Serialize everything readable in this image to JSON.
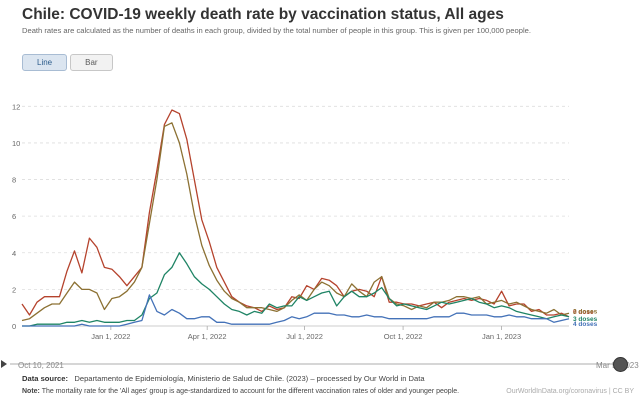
{
  "header": {
    "title": "Chile: COVID-19 weekly death rate by vaccination status, All ages",
    "subtitle": "Death rates are calculated as the number of deaths in each group, divided by the total number of people in this group. This is given per 100,000 people."
  },
  "tabs": [
    {
      "label": "Line",
      "active": true
    },
    {
      "label": "Bar",
      "active": false
    }
  ],
  "timeline": {
    "start_label": "Oct 10, 2021",
    "end_label": "Mar 5, 2023"
  },
  "footer": {
    "source_label": "Data source:",
    "source_text": "Departamento de Epidemiología, Ministerio de Salud de Chile. (2023) – processed by Our World in Data",
    "note_label": "Note:",
    "note_text": "The mortality rate for the 'All ages' group is age-standardized to account for the different vaccination rates of older and younger people.",
    "link": "OurWorldInData.org/coronavirus | CC BY"
  },
  "chart_data": {
    "type": "line",
    "ylim": [
      0,
      13
    ],
    "y_ticks": [
      0,
      2,
      4,
      6,
      8,
      10,
      12
    ],
    "x_range": [
      "2021-10-10",
      "2023-03-05"
    ],
    "x_ticks": [
      {
        "label": "Jan 1, 2022",
        "date": "2022-01-01"
      },
      {
        "label": "Apr 1, 2022",
        "date": "2022-04-01"
      },
      {
        "label": "Jul 1, 2022",
        "date": "2022-07-01"
      },
      {
        "label": "Oct 1, 2022",
        "date": "2022-10-01"
      },
      {
        "label": "Jan 1, 2023",
        "date": "2023-01-01"
      }
    ],
    "x": [
      "2021-10-10",
      "2021-10-17",
      "2021-10-24",
      "2021-10-31",
      "2021-11-07",
      "2021-11-14",
      "2021-11-21",
      "2021-11-28",
      "2021-12-05",
      "2021-12-12",
      "2021-12-19",
      "2021-12-26",
      "2022-01-02",
      "2022-01-09",
      "2022-01-16",
      "2022-01-23",
      "2022-01-30",
      "2022-02-06",
      "2022-02-13",
      "2022-02-20",
      "2022-02-27",
      "2022-03-06",
      "2022-03-13",
      "2022-03-20",
      "2022-03-27",
      "2022-04-03",
      "2022-04-10",
      "2022-04-17",
      "2022-04-24",
      "2022-05-01",
      "2022-05-08",
      "2022-05-15",
      "2022-05-22",
      "2022-05-29",
      "2022-06-05",
      "2022-06-12",
      "2022-06-19",
      "2022-06-26",
      "2022-07-03",
      "2022-07-10",
      "2022-07-17",
      "2022-07-24",
      "2022-07-31",
      "2022-08-07",
      "2022-08-14",
      "2022-08-21",
      "2022-08-28",
      "2022-09-04",
      "2022-09-11",
      "2022-09-18",
      "2022-09-25",
      "2022-10-02",
      "2022-10-09",
      "2022-10-16",
      "2022-10-23",
      "2022-10-30",
      "2022-11-06",
      "2022-11-13",
      "2022-11-20",
      "2022-11-27",
      "2022-12-04",
      "2022-12-11",
      "2022-12-18",
      "2022-12-25",
      "2023-01-01",
      "2023-01-08",
      "2023-01-15",
      "2023-01-22",
      "2023-01-29",
      "2023-02-05",
      "2023-02-12",
      "2023-02-19",
      "2023-02-26",
      "2023-03-05"
    ],
    "series": [
      {
        "name": "0 dose",
        "color": "#b5432d",
        "values": [
          1.2,
          0.6,
          1.3,
          1.6,
          1.6,
          1.6,
          3.0,
          4.1,
          2.9,
          4.8,
          4.3,
          3.2,
          3.1,
          2.7,
          2.2,
          2.7,
          3.2,
          6.2,
          8.5,
          11.0,
          11.8,
          11.6,
          10.2,
          8.0,
          5.8,
          4.6,
          3.2,
          2.4,
          1.6,
          1.3,
          1.1,
          1.0,
          0.8,
          1.1,
          0.9,
          1.0,
          1.6,
          1.5,
          2.2,
          2.0,
          2.6,
          2.5,
          2.2,
          1.6,
          1.9,
          2.0,
          1.9,
          1.6,
          2.7,
          1.3,
          1.3,
          1.2,
          1.2,
          1.1,
          1.2,
          1.3,
          1.0,
          1.3,
          1.4,
          1.5,
          1.4,
          1.5,
          1.4,
          1.2,
          1.9,
          1.1,
          1.2,
          1.2,
          0.8,
          0.9,
          0.6,
          0.6,
          0.7,
          0.5
        ]
      },
      {
        "name": "2 doses",
        "color": "#8c7133",
        "values": [
          0.3,
          0.4,
          0.7,
          1.0,
          1.2,
          1.2,
          1.8,
          2.4,
          2.0,
          2.0,
          1.8,
          0.9,
          1.5,
          1.6,
          1.9,
          2.4,
          3.2,
          5.6,
          8.0,
          10.9,
          11.1,
          10.0,
          8.3,
          6.1,
          4.4,
          3.3,
          2.5,
          1.9,
          1.5,
          1.3,
          1.0,
          1.0,
          1.0,
          0.9,
          0.8,
          1.0,
          1.4,
          1.7,
          1.4,
          2.0,
          2.4,
          2.2,
          1.8,
          1.6,
          2.3,
          1.9,
          1.6,
          2.4,
          2.7,
          1.5,
          1.2,
          1.1,
          0.9,
          1.1,
          1.0,
          1.3,
          1.3,
          1.4,
          1.6,
          1.6,
          1.5,
          1.6,
          1.2,
          1.3,
          1.4,
          1.2,
          1.3,
          1.1,
          0.9,
          0.8,
          0.7,
          0.9,
          0.6,
          0.7
        ]
      },
      {
        "name": "3 doses",
        "color": "#1f8465",
        "values": [
          0.0,
          0.0,
          0.1,
          0.1,
          0.1,
          0.1,
          0.2,
          0.2,
          0.3,
          0.2,
          0.3,
          0.2,
          0.2,
          0.2,
          0.3,
          0.3,
          0.6,
          1.5,
          1.8,
          2.8,
          3.2,
          4.0,
          3.4,
          2.7,
          2.3,
          2.0,
          1.6,
          1.2,
          0.9,
          0.8,
          0.6,
          0.8,
          0.7,
          1.2,
          1.0,
          1.1,
          1.1,
          1.6,
          1.4,
          1.6,
          1.8,
          1.9,
          1.1,
          1.6,
          1.9,
          1.6,
          1.6,
          1.8,
          2.1,
          1.5,
          1.1,
          1.2,
          1.1,
          1.0,
          0.9,
          1.1,
          1.3,
          1.2,
          1.3,
          1.4,
          1.5,
          1.3,
          1.2,
          1.0,
          1.1,
          1.0,
          0.8,
          0.7,
          0.6,
          0.5,
          0.4,
          0.5,
          0.6,
          0.5
        ]
      },
      {
        "name": "4 doses",
        "color": "#4472b8",
        "values": [
          0.0,
          0.0,
          0.0,
          0.0,
          0.0,
          0.0,
          0.0,
          0.0,
          0.1,
          0.0,
          0.0,
          0.0,
          0.0,
          0.0,
          0.1,
          0.2,
          0.3,
          1.7,
          0.8,
          0.6,
          0.9,
          0.7,
          0.4,
          0.4,
          0.5,
          0.5,
          0.2,
          0.2,
          0.1,
          0.1,
          0.1,
          0.1,
          0.1,
          0.1,
          0.2,
          0.3,
          0.5,
          0.4,
          0.5,
          0.7,
          0.7,
          0.7,
          0.6,
          0.6,
          0.5,
          0.5,
          0.6,
          0.5,
          0.5,
          0.4,
          0.4,
          0.4,
          0.4,
          0.4,
          0.4,
          0.5,
          0.5,
          0.5,
          0.7,
          0.7,
          0.6,
          0.6,
          0.6,
          0.5,
          0.5,
          0.6,
          0.5,
          0.5,
          0.4,
          0.4,
          0.4,
          0.2,
          0.3,
          0.4
        ]
      }
    ]
  }
}
